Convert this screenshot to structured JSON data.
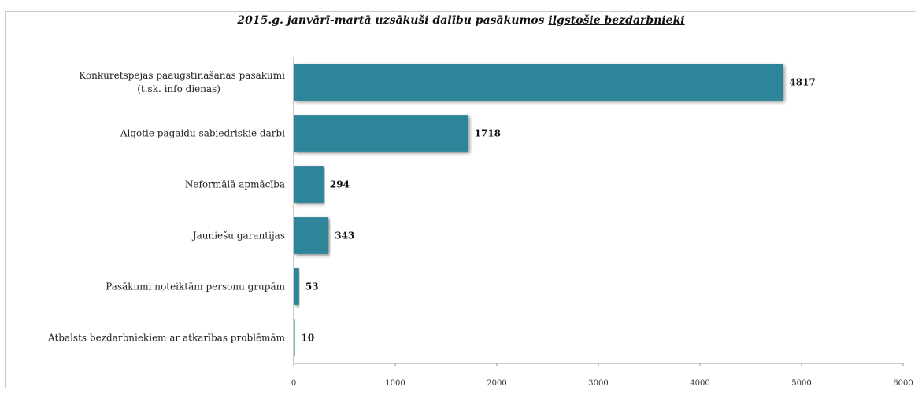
{
  "chart_data": {
    "type": "bar",
    "orientation": "horizontal",
    "title_part1": "2015.g. janvārī-martā uzsākuši dalību pasākumos ",
    "title_part2": "ilgstošie bezdarbnieki",
    "categories": [
      [
        "Konkurētspējas paaugstināšanas pasākumi",
        "(t.sk. info dienas)"
      ],
      [
        "Algotie pagaidu sabiedriskie darbi"
      ],
      [
        "Neformālā apmācība"
      ],
      [
        "Jauniešu garantijas"
      ],
      [
        "Pasākumi noteiktām personu grupām"
      ],
      [
        "Atbalsts bezdarbniekiem ar atkarības problēmām"
      ]
    ],
    "values": [
      4817,
      1718,
      294,
      343,
      53,
      10
    ],
    "xlim": [
      0,
      6000
    ],
    "xticks": [
      0,
      1000,
      2000,
      3000,
      4000,
      5000,
      6000
    ],
    "bar_color": "#2e8499",
    "grid": false,
    "legend": false,
    "data_labels": true
  }
}
